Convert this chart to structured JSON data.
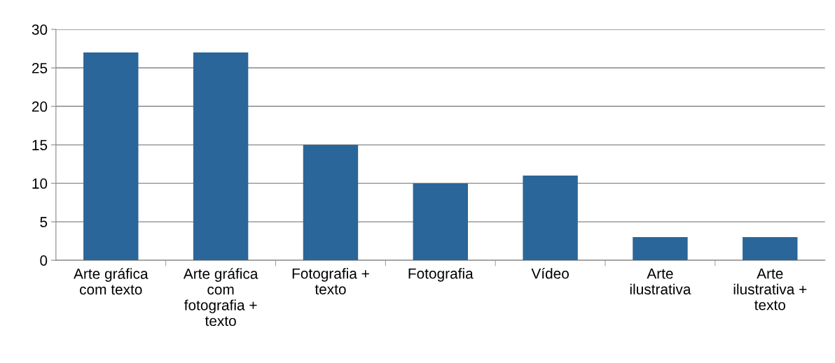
{
  "chart_data": {
    "type": "bar",
    "categories": [
      "Arte gráfica\ncom texto",
      "Arte gráfica\ncom\nfotografia +\ntexto",
      "Fotografia +\ntexto",
      "Fotografia",
      "Vídeo",
      "Arte\nilustrativa",
      "Arte\nilustrativa +\ntexto"
    ],
    "values": [
      27,
      27,
      15,
      10,
      11,
      3,
      3
    ],
    "color": "#2a6699",
    "ylim": [
      0,
      30
    ],
    "yticks": [
      0,
      5,
      10,
      15,
      20,
      25,
      30
    ],
    "grid": "y",
    "legend": false
  }
}
